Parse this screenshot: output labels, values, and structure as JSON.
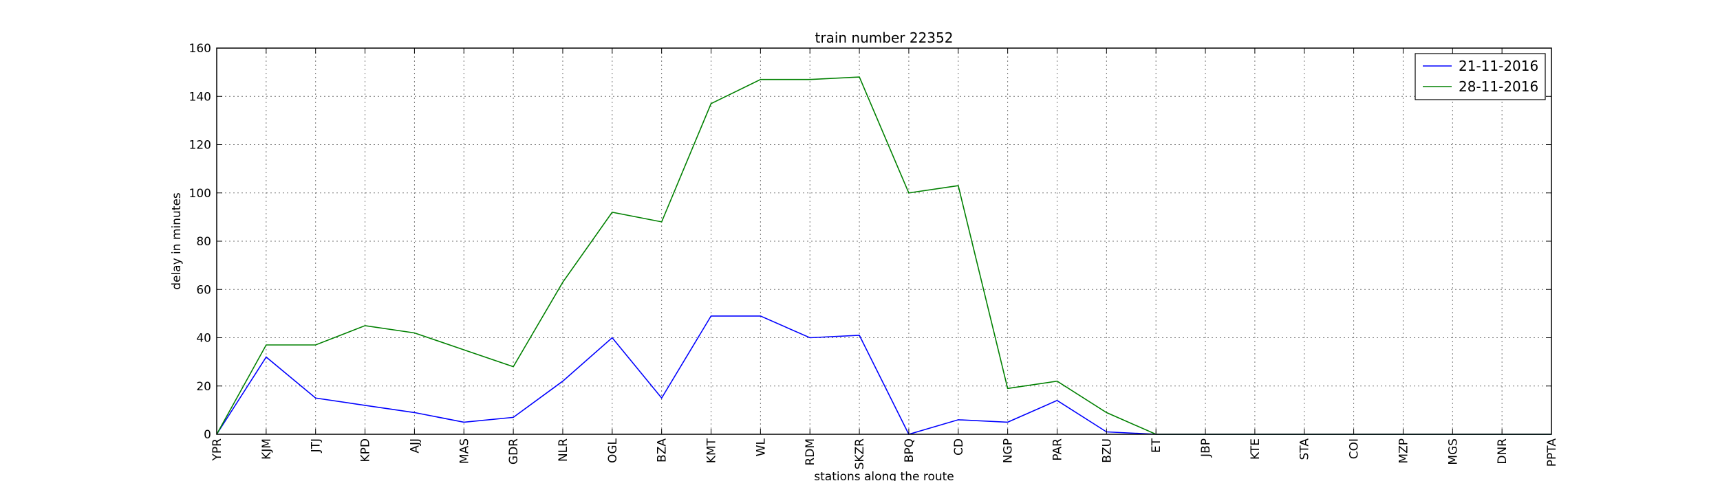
{
  "chart_data": {
    "type": "line",
    "title": "train number 22352",
    "xlabel": "stations along the route",
    "ylabel": "delay in minutes",
    "categories": [
      "YPR",
      "KJM",
      "JTJ",
      "KPD",
      "AJJ",
      "MAS",
      "GDR",
      "NLR",
      "OGL",
      "BZA",
      "KMT",
      "WL",
      "RDM",
      "SKZR",
      "BPQ",
      "CD",
      "NGP",
      "PAR",
      "BZU",
      "ET",
      "JBP",
      "KTE",
      "STA",
      "COI",
      "MZP",
      "MGS",
      "DNR",
      "PPTA"
    ],
    "ylim": [
      0,
      160
    ],
    "yticks": [
      "0",
      "20",
      "40",
      "60",
      "80",
      "100",
      "120",
      "140",
      "160"
    ],
    "grid": true,
    "legend_position": "top-right",
    "series": [
      {
        "name": "21-11-2016",
        "color": "#0000ff",
        "values": [
          0,
          32,
          15,
          12,
          9,
          5,
          7,
          22,
          40,
          15,
          49,
          49,
          40,
          41,
          0,
          6,
          5,
          14,
          1,
          0,
          0,
          0,
          0,
          0,
          0,
          0,
          0,
          0
        ]
      },
      {
        "name": "28-11-2016",
        "color": "#008000",
        "values": [
          0,
          37,
          37,
          45,
          42,
          35,
          28,
          63,
          92,
          88,
          137,
          147,
          147,
          148,
          100,
          103,
          19,
          22,
          9,
          0,
          0,
          0,
          0,
          0,
          0,
          0,
          0,
          0
        ]
      }
    ]
  }
}
